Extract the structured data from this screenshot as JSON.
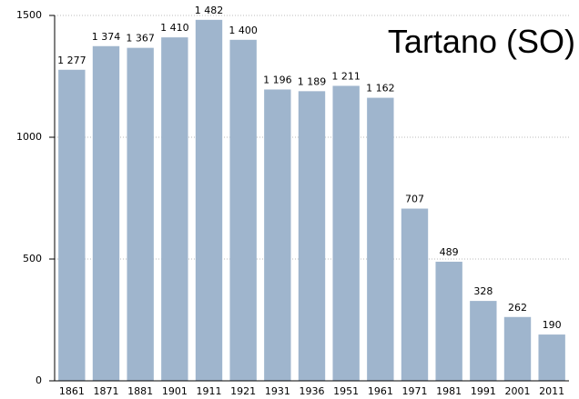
{
  "chart_data": {
    "type": "bar",
    "title": "Tartano (SO)",
    "categories": [
      "1861",
      "1871",
      "1881",
      "1901",
      "1911",
      "1921",
      "1931",
      "1936",
      "1951",
      "1961",
      "1971",
      "1981",
      "1991",
      "2001",
      "2011"
    ],
    "values": [
      1277,
      1374,
      1367,
      1410,
      1482,
      1400,
      1196,
      1189,
      1211,
      1162,
      707,
      489,
      328,
      262,
      190
    ],
    "value_labels": [
      "1 277",
      "1 374",
      "1 367",
      "1 410",
      "1 482",
      "1 400",
      "1 196",
      "1 189",
      "1 211",
      "1 162",
      "707",
      "489",
      "328",
      "262",
      "190"
    ],
    "color": "#9fb5cd",
    "ylim": [
      0,
      1500
    ],
    "yticks": [
      0,
      500,
      1000,
      1500
    ],
    "grid": true
  }
}
